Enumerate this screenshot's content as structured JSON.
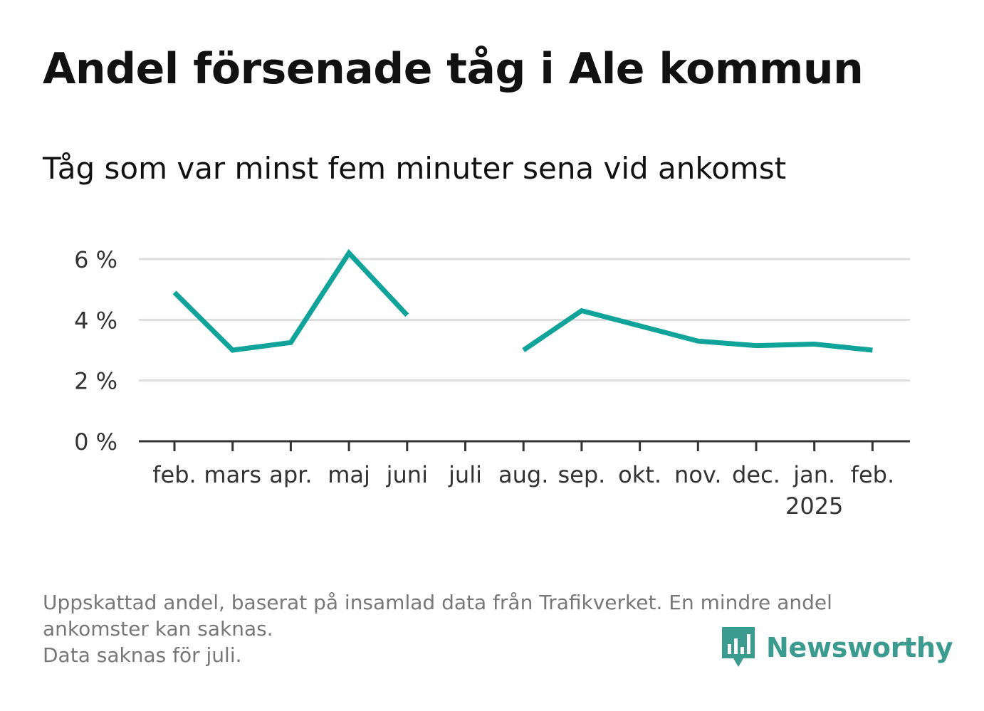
{
  "header": {
    "title": "Andel försenade tåg i Ale kommun",
    "subtitle": "Tåg som var minst fem minuter sena vid ankomst"
  },
  "footer": {
    "note_lines": [
      "Uppskattad andel, baserat på insamlad data från Trafikverket. En mindre andel ankomster kan saknas.",
      "Data saknas för juli."
    ],
    "brand": "Newsworthy",
    "brand_color": "#3a9b8e"
  },
  "colors": {
    "line": "#0fa39a",
    "grid": "#dddddd",
    "axis": "#333333",
    "tick_text": "#333333"
  },
  "chart_data": {
    "type": "line",
    "title": "Andel försenade tåg i Ale kommun",
    "subtitle": "Tåg som var minst fem minuter sena vid ankomst",
    "categories": [
      "feb.",
      "mars",
      "apr.",
      "maj",
      "juni",
      "juli",
      "aug.",
      "sep.",
      "okt.",
      "nov.",
      "dec.",
      "jan.",
      "feb."
    ],
    "category_sublabels": [
      "",
      "",
      "",
      "",
      "",
      "",
      "",
      "",
      "",
      "",
      "",
      "2025",
      ""
    ],
    "series": [
      {
        "values": [
          4.9,
          3.0,
          3.25,
          6.2,
          4.15,
          null,
          3.0,
          4.3,
          3.8,
          3.3,
          3.15,
          3.2,
          3.0
        ]
      }
    ],
    "y_ticks": [
      0,
      2,
      4,
      6
    ],
    "y_tick_labels": [
      "0 %",
      "2 %",
      "4 %",
      "6 %"
    ],
    "ylim": [
      0,
      6
    ],
    "grid": true,
    "legend": "none"
  }
}
